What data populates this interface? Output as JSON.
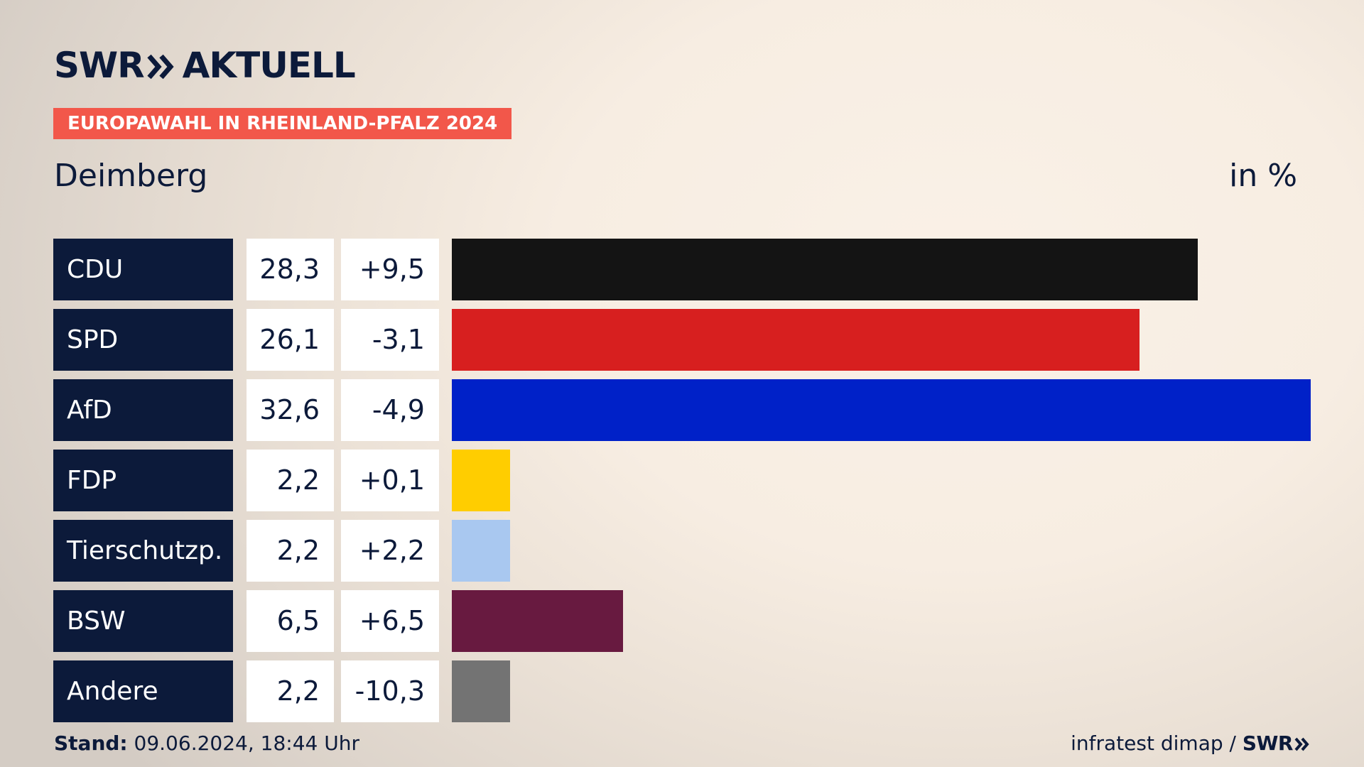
{
  "brand": {
    "name": "SWR",
    "product": "AKTUELL"
  },
  "kicker": "EUROPAWAHL IN RHEINLAND-PFALZ 2024",
  "place": "Deimberg",
  "unit": "in %",
  "colors": {
    "navy": "#0c1a3a",
    "kicker": "#f2574a"
  },
  "chart_data": {
    "type": "bar",
    "orientation": "horizontal",
    "xlim": [
      0,
      32.6
    ],
    "categories": [
      "CDU",
      "SPD",
      "AfD",
      "FDP",
      "Tierschutzp.",
      "BSW",
      "Andere"
    ],
    "values": [
      28.3,
      26.1,
      32.6,
      2.2,
      2.2,
      6.5,
      2.2
    ],
    "rows": [
      {
        "party": "CDU",
        "value": "28,3",
        "diff": "+9,5",
        "pct": 28.3,
        "color": "#141414"
      },
      {
        "party": "SPD",
        "value": "26,1",
        "diff": "-3,1",
        "pct": 26.1,
        "color": "#d71f1f"
      },
      {
        "party": "AfD",
        "value": "32,6",
        "diff": "-4,9",
        "pct": 32.6,
        "color": "#0021c8"
      },
      {
        "party": "FDP",
        "value": "2,2",
        "diff": "+0,1",
        "pct": 2.2,
        "color": "#ffcd00"
      },
      {
        "party": "Tierschutzp.",
        "value": "2,2",
        "diff": "+2,2",
        "pct": 2.2,
        "color": "#a9c8f0"
      },
      {
        "party": "BSW",
        "value": "6,5",
        "diff": "+6,5",
        "pct": 6.5,
        "color": "#681a40"
      },
      {
        "party": "Andere",
        "value": "2,2",
        "diff": "-10,3",
        "pct": 2.2,
        "color": "#737373"
      }
    ]
  },
  "footer": {
    "stand_label": "Stand:",
    "stand_value": "09.06.2024, 18:44 Uhr",
    "source": "infratest dimap /",
    "source_brand": "SWR"
  }
}
